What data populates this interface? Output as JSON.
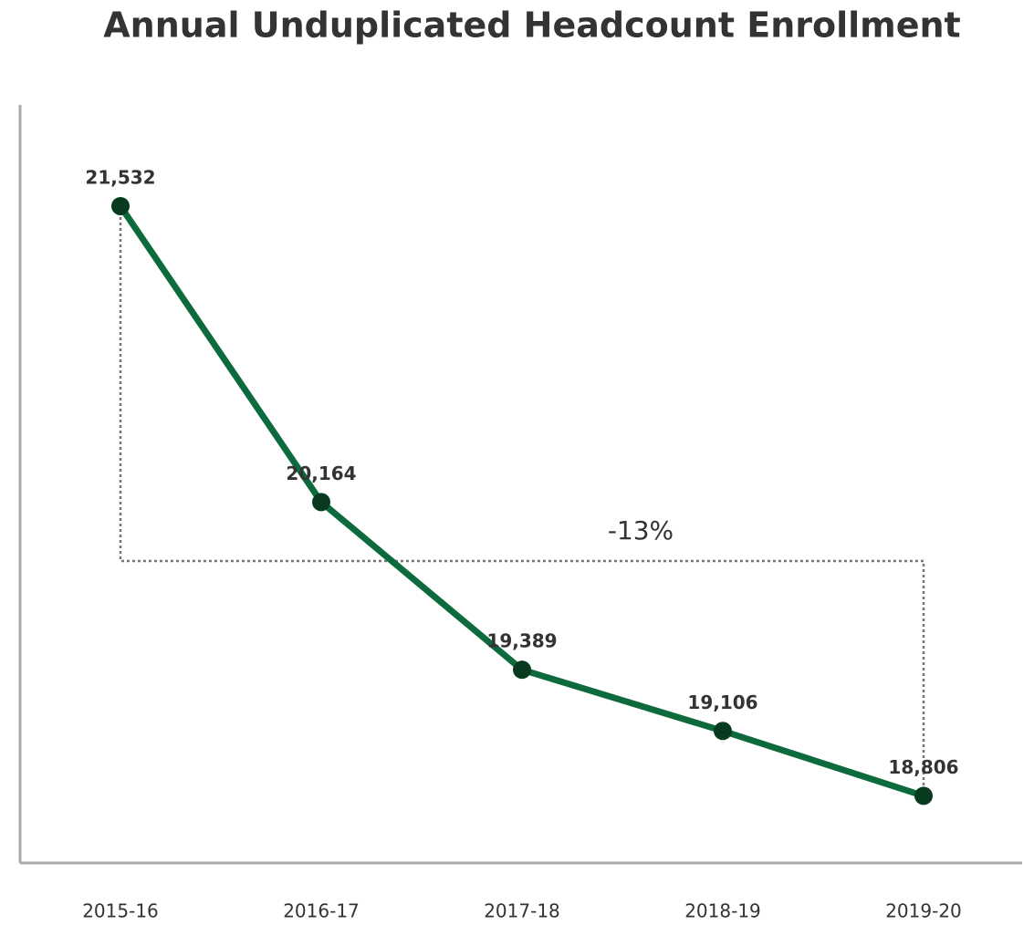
{
  "chart_data": {
    "type": "line",
    "title": "Annual Unduplicated Headcount Enrollment",
    "categories": [
      "2015-16",
      "2016-17",
      "2017-18",
      "2018-19",
      "2019-20"
    ],
    "series": [
      {
        "color": "#0d6a3c",
        "values": [
          21532,
          20164,
          19389,
          19106,
          18806
        ],
        "value_labels": [
          "21,532",
          "20,164",
          "19,389",
          "19,106",
          "18,806"
        ]
      }
    ],
    "annotations": [
      "-13%"
    ],
    "ylim": [
      18500,
      22000
    ]
  }
}
